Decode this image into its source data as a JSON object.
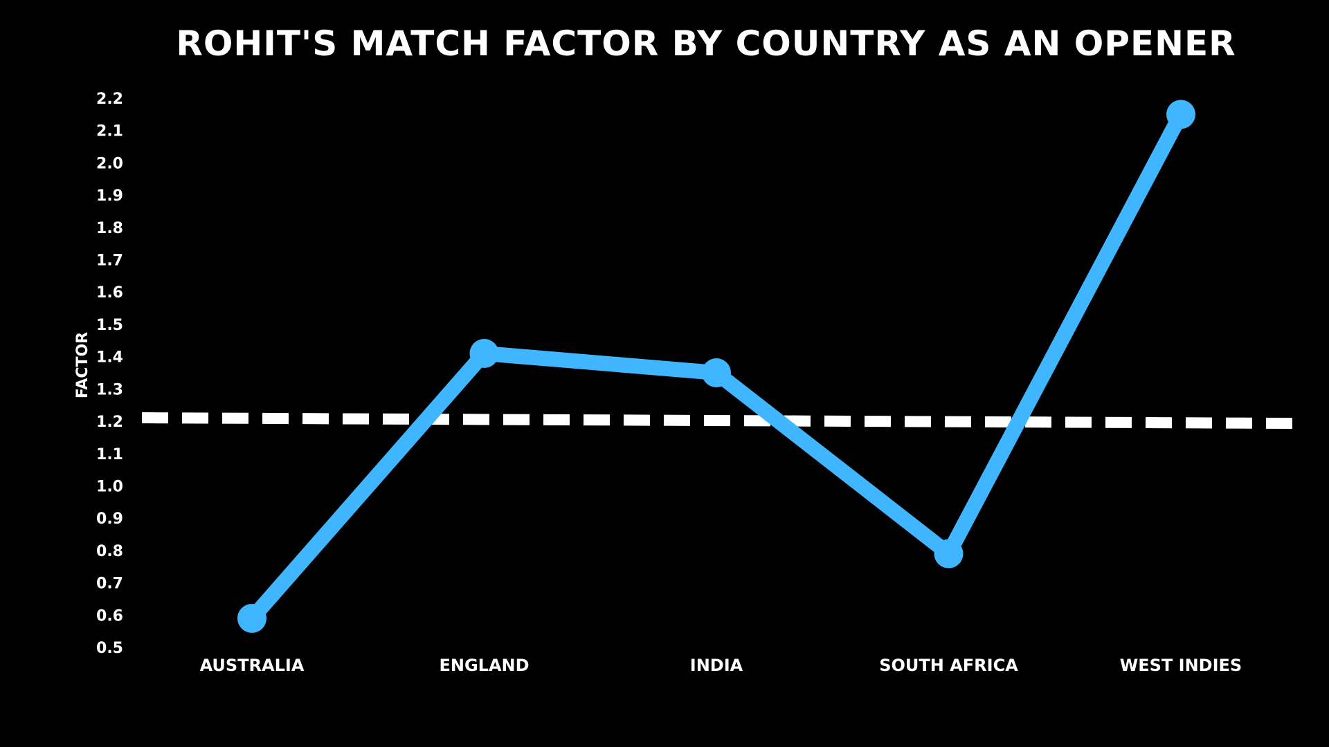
{
  "chart_data": {
    "type": "line",
    "title": "ROHIT'S MATCH FACTOR BY COUNTRY AS AN OPENER",
    "xlabel": "",
    "ylabel": "FACTOR",
    "categories": [
      "AUSTRALIA",
      "ENGLAND",
      "INDIA",
      "SOUTH AFRICA",
      "WEST INDIES"
    ],
    "series": [
      {
        "values": [
          0.59,
          1.41,
          1.35,
          0.79,
          2.15
        ],
        "color": "#3fb6ff"
      }
    ],
    "reference_line": {
      "value": 1.2,
      "style": "dashed",
      "color": "#ffffff"
    },
    "ylim": [
      0.5,
      2.2
    ],
    "yticks": [
      "0.5",
      "0.6",
      "0.7",
      "0.8",
      "0.9",
      "1.0",
      "1.1",
      "1.2",
      "1.3",
      "1.4",
      "1.5",
      "1.6",
      "1.7",
      "1.8",
      "1.9",
      "2.0",
      "2.1",
      "2.2"
    ],
    "grid": false,
    "legend": "none",
    "background": "#000000",
    "text_color": "#ffffff"
  }
}
